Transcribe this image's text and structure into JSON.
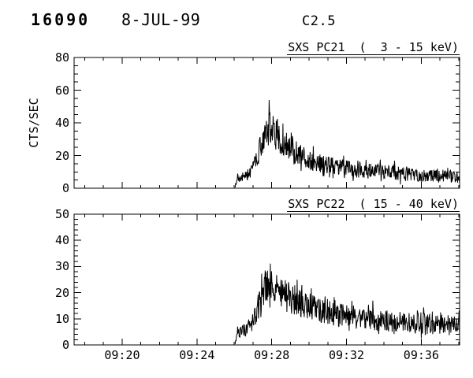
{
  "header": {
    "event_id": "16090",
    "date": "8-JUL-99",
    "goes_class": "C2.5"
  },
  "colors": {
    "background": "#ffffff",
    "foreground": "#000000"
  },
  "chart_data": [
    {
      "type": "line",
      "title": "SXS PC21  (  3 - 15 keV)",
      "ylabel": "CTS/SEC",
      "ylim": [
        0,
        80
      ],
      "y_major_ticks": [
        0,
        20,
        40,
        60,
        80
      ],
      "y_minor_step": 5,
      "x_range_minutes_after_0900": [
        17.43,
        38.05
      ],
      "x_major_ticks_minutes": [
        20,
        24,
        28,
        32,
        36
      ],
      "x_tick_labels": [],
      "x_minor_step_minutes": 1,
      "grid": false,
      "line_color": "#000000",
      "series": {
        "name": "SXS PC21 3-15 keV count rate",
        "units": "CTS/SEC",
        "flare_start_label": "09:26",
        "flare_peak_label": "09:28",
        "peak_value_approx": 50,
        "trend_points_t_mean_amp": [
          [
            26.05,
            1.0,
            0.8
          ],
          [
            26.15,
            6.0,
            2.5
          ],
          [
            26.55,
            7.0,
            3.0
          ],
          [
            26.9,
            10.0,
            3.5
          ],
          [
            27.15,
            16.0,
            5.0
          ],
          [
            27.45,
            27.0,
            8.0
          ],
          [
            27.75,
            35.0,
            10.0
          ],
          [
            27.95,
            38.0,
            11.0
          ],
          [
            28.15,
            34.0,
            10.0
          ],
          [
            28.45,
            29.0,
            8.0
          ],
          [
            28.9,
            25.0,
            8.0
          ],
          [
            29.4,
            21.0,
            7.0
          ],
          [
            30.0,
            17.0,
            6.0
          ],
          [
            30.8,
            14.5,
            5.5
          ],
          [
            31.8,
            13.0,
            5.0
          ],
          [
            32.8,
            11.0,
            5.0
          ],
          [
            33.8,
            10.0,
            4.5
          ],
          [
            34.8,
            9.0,
            4.5
          ],
          [
            35.8,
            8.0,
            4.0
          ],
          [
            36.8,
            7.5,
            4.0
          ],
          [
            38.05,
            7.0,
            4.0
          ]
        ]
      }
    },
    {
      "type": "line",
      "title": "SXS PC22  ( 15 - 40 keV)",
      "ylabel": "",
      "ylim": [
        0,
        50
      ],
      "y_major_ticks": [
        0,
        10,
        20,
        30,
        40,
        50
      ],
      "y_minor_step": 2,
      "x_range_minutes_after_0900": [
        17.43,
        38.05
      ],
      "x_major_ticks_minutes": [
        20,
        24,
        28,
        32,
        36
      ],
      "x_tick_labels": [
        "09:20",
        "09:24",
        "09:28",
        "09:32",
        "09:36"
      ],
      "x_minor_step_minutes": 1,
      "grid": false,
      "line_color": "#000000",
      "series": {
        "name": "SXS PC22 15-40 keV count rate",
        "units": "CTS/SEC",
        "flare_start_label": "09:26",
        "flare_peak_label": "09:28",
        "peak_value_approx": 32,
        "trend_points_t_mean_amp": [
          [
            26.05,
            1.0,
            0.8
          ],
          [
            26.15,
            5.0,
            2.2
          ],
          [
            26.7,
            6.0,
            2.8
          ],
          [
            27.0,
            9.0,
            3.5
          ],
          [
            27.3,
            15.0,
            5.0
          ],
          [
            27.6,
            21.0,
            6.0
          ],
          [
            27.85,
            24.0,
            7.0
          ],
          [
            28.1,
            22.0,
            6.5
          ],
          [
            28.5,
            20.0,
            6.0
          ],
          [
            29.0,
            18.0,
            6.0
          ],
          [
            29.7,
            15.5,
            5.5
          ],
          [
            30.5,
            13.5,
            5.0
          ],
          [
            31.5,
            12.0,
            5.0
          ],
          [
            32.5,
            10.5,
            4.5
          ],
          [
            33.5,
            10.0,
            4.5
          ],
          [
            34.5,
            9.0,
            4.0
          ],
          [
            35.5,
            8.5,
            4.0
          ],
          [
            36.5,
            8.0,
            4.0
          ],
          [
            38.05,
            7.0,
            4.0
          ]
        ]
      }
    }
  ]
}
